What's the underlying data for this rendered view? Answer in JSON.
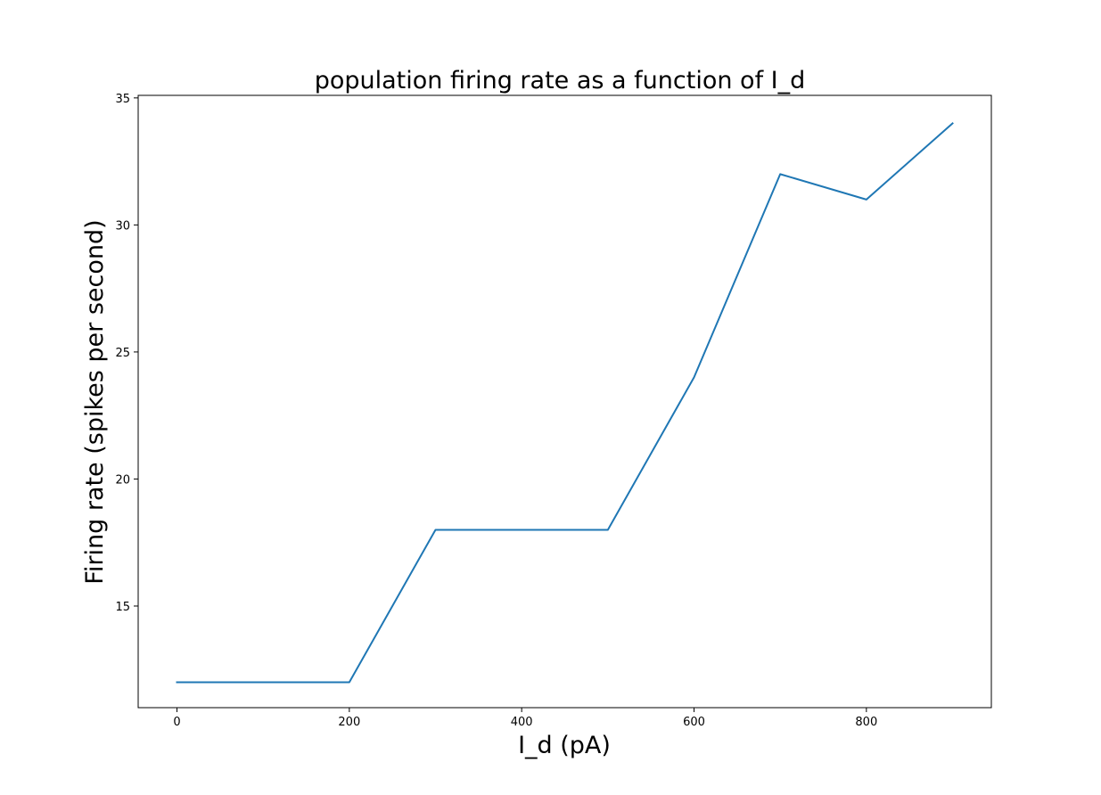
{
  "chart_data": {
    "type": "line",
    "title": "population firing rate as a function of I_d",
    "xlabel": "I_d (pA)",
    "ylabel": "Firing rate (spikes per second)",
    "x": [
      0,
      100,
      200,
      300,
      400,
      500,
      600,
      700,
      800,
      900
    ],
    "series": [
      {
        "values": [
          12,
          12,
          12,
          18,
          18,
          18,
          24,
          32,
          31,
          34
        ],
        "color": "#1f77b4"
      }
    ],
    "xlim": [
      -45,
      945
    ],
    "ylim": [
      11.0,
      35.1
    ],
    "xticks": [
      0,
      200,
      400,
      600,
      800
    ],
    "yticks": [
      15,
      20,
      25,
      30,
      35
    ],
    "grid": false,
    "legend": "none"
  }
}
